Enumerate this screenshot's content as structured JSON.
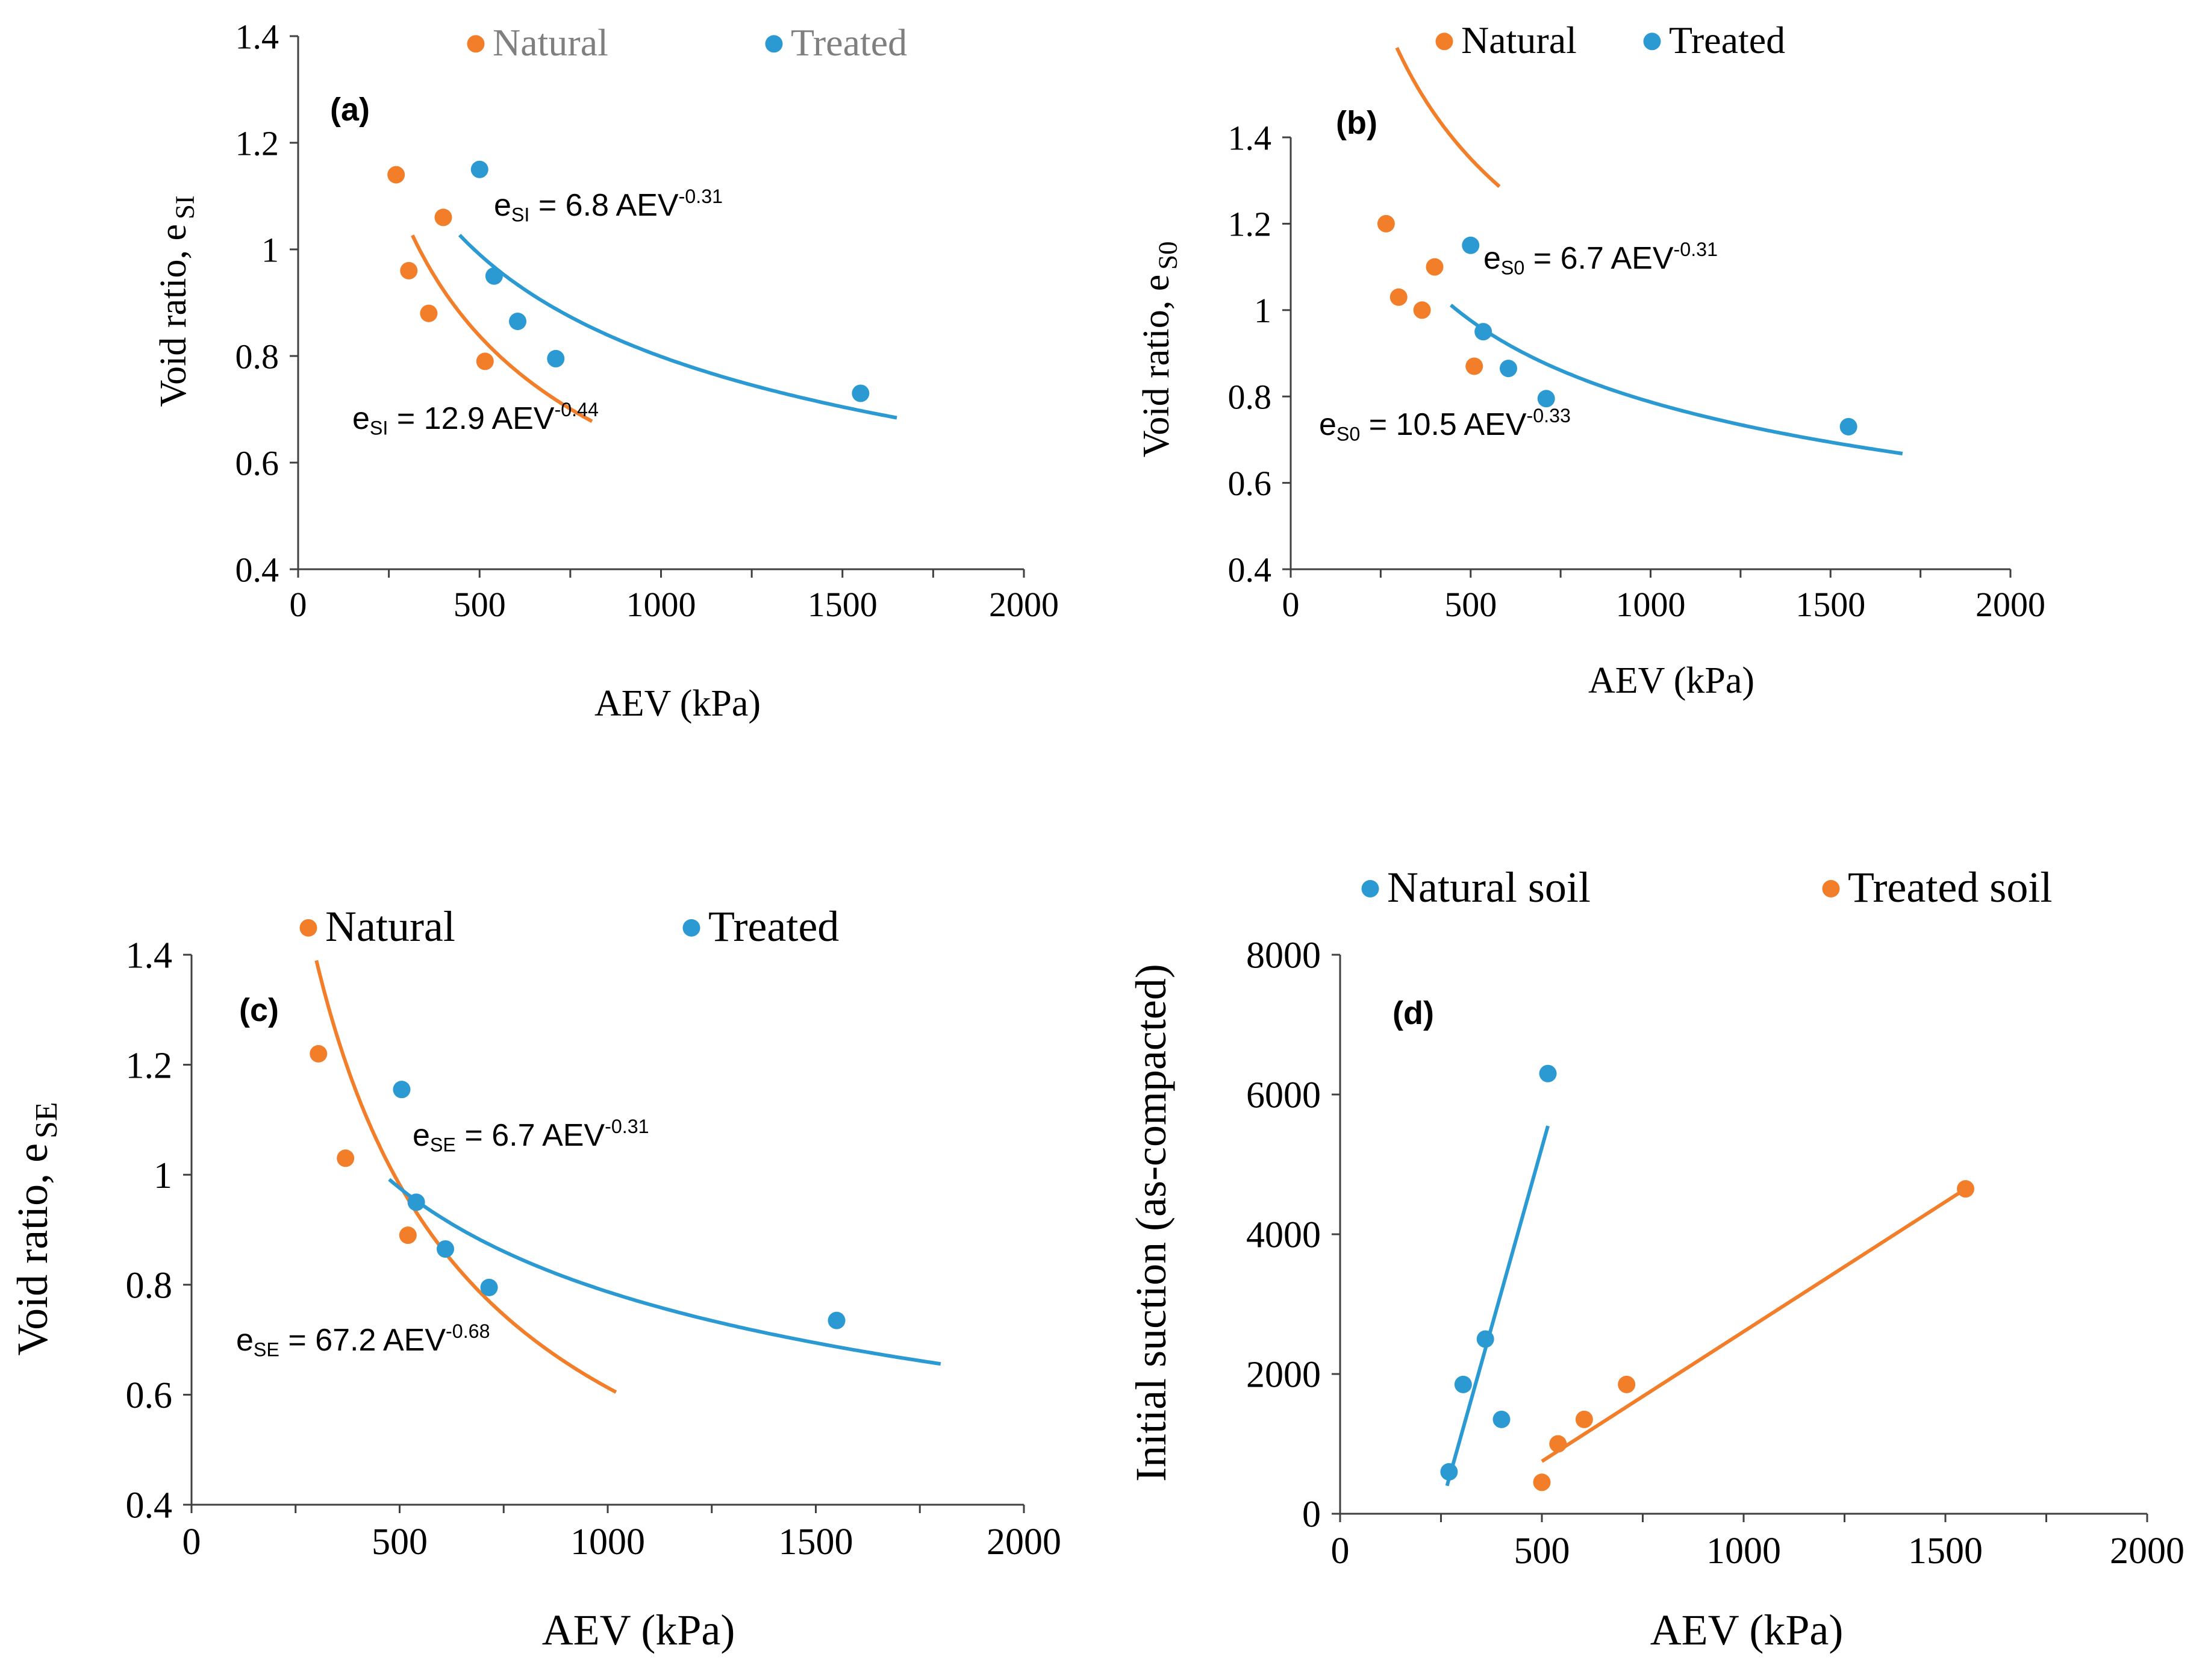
{
  "colors": {
    "natural": "#F27E2A",
    "treated": "#2B9AD3",
    "axis": "#404040",
    "text": "#000000"
  },
  "chart_data": [
    {
      "type": "scatter",
      "panel_label": "(a)",
      "xlabel": "AEV (kPa)",
      "ylabel": "Void ratio, e",
      "ylabel_sub": "SI",
      "xlim": [
        0,
        2000
      ],
      "ylim": [
        0.4,
        1.4
      ],
      "xticks": [
        0,
        500,
        1000,
        1500,
        2000
      ],
      "yticks": [
        0.4,
        0.6,
        0.8,
        1,
        1.2,
        1.4
      ],
      "series": [
        {
          "name": "Natural",
          "color": "#F27E2A",
          "points": [
            [
              270,
              1.14
            ],
            [
              305,
              0.96
            ],
            [
              360,
              0.88
            ],
            [
              400,
              1.06
            ],
            [
              515,
              0.79
            ]
          ],
          "fit": {
            "a": 12.9,
            "b": -0.44,
            "x_range": [
              315,
              810
            ]
          },
          "equation": {
            "lead": "e",
            "sub": "SI",
            "rest": " = 12.9 AEV",
            "exp": "-0.44"
          }
        },
        {
          "name": "Treated",
          "color": "#2B9AD3",
          "points": [
            [
              500,
              1.15
            ],
            [
              540,
              0.95
            ],
            [
              605,
              0.865
            ],
            [
              710,
              0.795
            ],
            [
              1550,
              0.73
            ]
          ],
          "fit": {
            "a": 6.8,
            "b": -0.31,
            "x_range": [
              445,
              1650
            ]
          },
          "equation": {
            "lead": "e",
            "sub": "SI",
            "rest": " = 6.8 AEV",
            "exp": "-0.31"
          }
        }
      ]
    },
    {
      "type": "scatter",
      "panel_label": "(b)",
      "xlabel": "AEV (kPa)",
      "ylabel": "Void ratio, e",
      "ylabel_sub": "S0",
      "xlim": [
        0,
        2000
      ],
      "ylim": [
        0.4,
        1.4
      ],
      "xticks": [
        0,
        500,
        1000,
        1500,
        2000
      ],
      "yticks": [
        0.4,
        0.6,
        0.8,
        1,
        1.2,
        1.4
      ],
      "series": [
        {
          "name": "Natural",
          "color": "#F27E2A",
          "points": [
            [
              265,
              1.2
            ],
            [
              300,
              1.03
            ],
            [
              365,
              1.0
            ],
            [
              400,
              1.1
            ],
            [
              510,
              0.87
            ]
          ],
          "fit": {
            "a": 10.5,
            "b": -0.33,
            "x_range": [
              295,
              580
            ]
          },
          "equation": {
            "lead": "e",
            "sub": "S0",
            "rest": " = 10.5 AEV",
            "exp": "-0.33"
          }
        },
        {
          "name": "Treated",
          "color": "#2B9AD3",
          "points": [
            [
              500,
              1.15
            ],
            [
              535,
              0.95
            ],
            [
              605,
              0.865
            ],
            [
              710,
              0.795
            ],
            [
              1550,
              0.73
            ]
          ],
          "fit": {
            "a": 6.7,
            "b": -0.31,
            "x_range": [
              445,
              1700
            ]
          },
          "equation": {
            "lead": "e",
            "sub": "S0",
            "rest": " = 6.7 AEV",
            "exp": "-0.31"
          }
        }
      ]
    },
    {
      "type": "scatter",
      "panel_label": "(c)",
      "xlabel": "AEV (kPa)",
      "ylabel": "Void ratio, e",
      "ylabel_sub": "SE",
      "xlim": [
        0,
        2000
      ],
      "ylim": [
        0.4,
        1.4
      ],
      "xticks": [
        0,
        500,
        1000,
        1500,
        2000
      ],
      "yticks": [
        0.4,
        0.6,
        0.8,
        1,
        1.2,
        1.4
      ],
      "series": [
        {
          "name": "Natural",
          "color": "#F27E2A",
          "points": [
            [
              305,
              1.22
            ],
            [
              370,
              1.03
            ],
            [
              520,
              0.89
            ]
          ],
          "fit": {
            "a": 67.2,
            "b": -0.68,
            "x_range": [
              300,
              1020
            ]
          },
          "equation": {
            "lead": "e",
            "sub": "SE",
            "rest": " = 67.2 AEV",
            "exp": "-0.68"
          }
        },
        {
          "name": "Treated",
          "color": "#2B9AD3",
          "points": [
            [
              505,
              1.155
            ],
            [
              540,
              0.95
            ],
            [
              610,
              0.865
            ],
            [
              715,
              0.795
            ],
            [
              1550,
              0.735
            ]
          ],
          "fit": {
            "a": 6.7,
            "b": -0.31,
            "x_range": [
              475,
              1800
            ]
          },
          "equation": {
            "lead": "e",
            "sub": "SE",
            "rest": " = 6.7 AEV",
            "exp": "-0.31"
          }
        }
      ]
    },
    {
      "type": "scatter",
      "panel_label": "(d)",
      "xlabel": "AEV (kPa)",
      "ylabel": "Initial suction (as-compacted)",
      "ylabel_sub": "",
      "xlim": [
        0,
        2000
      ],
      "ylim": [
        0,
        8000
      ],
      "xticks": [
        0,
        500,
        1000,
        1500,
        2000
      ],
      "yticks": [
        0,
        2000,
        4000,
        6000,
        8000
      ],
      "series": [
        {
          "name": "Natural soil",
          "color": "#2B9AD3",
          "points": [
            [
              270,
              600
            ],
            [
              305,
              1850
            ],
            [
              360,
              2500
            ],
            [
              400,
              1350
            ],
            [
              515,
              6300
            ]
          ],
          "line": [
            [
              265,
              400
            ],
            [
              515,
              5550
            ]
          ]
        },
        {
          "name": "Treated soil",
          "color": "#F27E2A",
          "points": [
            [
              500,
              450
            ],
            [
              540,
              1000
            ],
            [
              605,
              1350
            ],
            [
              710,
              1850
            ],
            [
              1550,
              4650
            ]
          ],
          "line": [
            [
              500,
              750
            ],
            [
              1550,
              4650
            ]
          ]
        }
      ]
    }
  ]
}
